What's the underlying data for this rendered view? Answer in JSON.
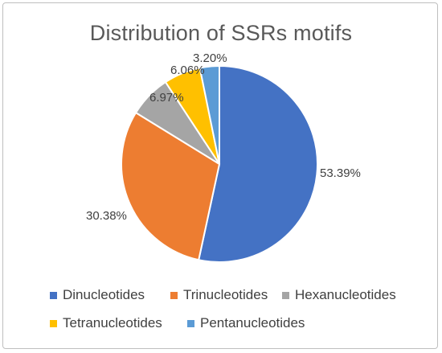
{
  "chart_data": {
    "type": "pie",
    "title": "Distribution of SSRs motifs",
    "slices": [
      {
        "name": "Dinucleotides",
        "value": 53.39,
        "label": "53.39%",
        "color": "#4472C4"
      },
      {
        "name": "Trinucleotides",
        "value": 30.38,
        "label": "30.38%",
        "color": "#ED7D31"
      },
      {
        "name": "Hexanucleotides",
        "value": 6.97,
        "label": "6.97%",
        "color": "#A5A5A5"
      },
      {
        "name": "Tetranucleotides",
        "value": 6.06,
        "label": "6.06%",
        "color": "#FFC000"
      },
      {
        "name": "Pentanucleotides",
        "value": 3.2,
        "label": "3.20%",
        "color": "#5B9BD5"
      }
    ],
    "legend_position": "bottom"
  }
}
